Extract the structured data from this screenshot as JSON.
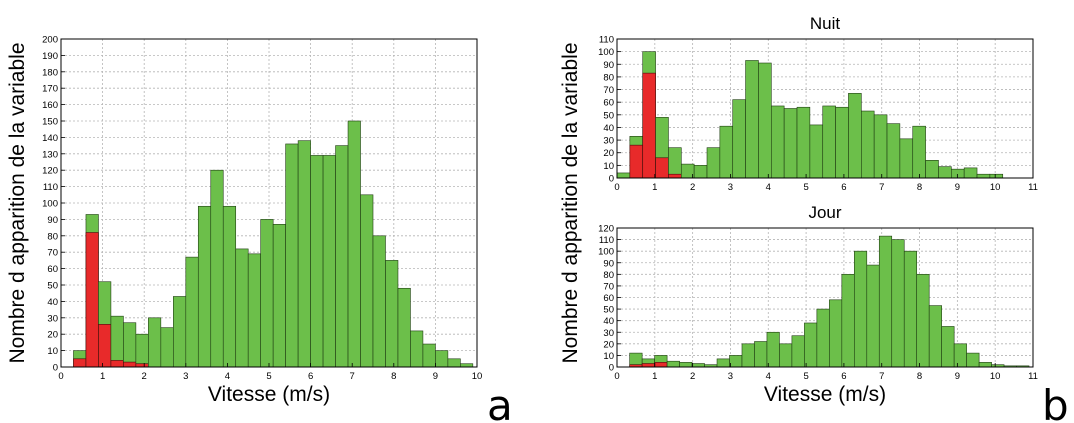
{
  "colors": {
    "green": "#6cbf4a",
    "red": "#e82a2a",
    "grid": "#b5b5b5"
  },
  "panel_labels": {
    "a": "a",
    "b": "b"
  },
  "chart_data": [
    {
      "id": "a",
      "type": "bar",
      "stacked_overlay": true,
      "title": "",
      "xlabel": "Vitesse (m/s)",
      "ylabel": "Nombre d apparition de la variable",
      "xlim": [
        0,
        10
      ],
      "ylim": [
        0,
        200
      ],
      "xticks": [
        0,
        1,
        2,
        3,
        4,
        5,
        6,
        7,
        8,
        9,
        10
      ],
      "yticks": [
        0,
        10,
        20,
        30,
        40,
        50,
        60,
        70,
        80,
        90,
        100,
        110,
        120,
        130,
        140,
        150,
        160,
        170,
        180,
        190,
        200
      ],
      "grid": true,
      "bin_width": 0.3,
      "x": [
        0.45,
        0.75,
        1.05,
        1.35,
        1.65,
        1.95,
        2.25,
        2.55,
        2.85,
        3.15,
        3.45,
        3.75,
        4.05,
        4.35,
        4.65,
        4.95,
        5.25,
        5.55,
        5.85,
        6.15,
        6.45,
        6.75,
        7.05,
        7.35,
        7.65,
        7.95,
        8.25,
        8.55,
        8.85,
        9.15,
        9.45,
        9.75
      ],
      "series": [
        {
          "values": [
            10,
            93,
            52,
            31,
            27,
            20,
            30,
            24,
            43,
            67,
            98,
            120,
            98,
            72,
            69,
            90,
            87,
            136,
            138,
            129,
            129,
            135,
            150,
            105,
            80,
            65,
            48,
            22,
            14,
            10,
            5,
            2
          ]
        },
        {
          "values": [
            5,
            82,
            26,
            4,
            3,
            2,
            0,
            0,
            0,
            0,
            0,
            0,
            0,
            0,
            0,
            0,
            0,
            0,
            0,
            0,
            0,
            0,
            0,
            0,
            0,
            0,
            0,
            0,
            0,
            0,
            0,
            0
          ]
        }
      ]
    },
    {
      "id": "nuit",
      "type": "bar",
      "stacked_overlay": true,
      "title": "Nuit",
      "xlabel": "",
      "ylabel": "Nombre d apparition de la variable",
      "xlim": [
        0,
        11
      ],
      "ylim": [
        0,
        110
      ],
      "xticks": [
        0,
        1,
        2,
        3,
        4,
        5,
        6,
        7,
        8,
        9,
        10,
        11
      ],
      "yticks": [
        0,
        10,
        20,
        30,
        40,
        50,
        60,
        70,
        80,
        90,
        100,
        110
      ],
      "grid": true,
      "bin_width": 0.34,
      "x": [
        0.17,
        0.51,
        0.85,
        1.19,
        1.53,
        1.87,
        2.21,
        2.55,
        2.89,
        3.23,
        3.57,
        3.91,
        4.25,
        4.59,
        4.93,
        5.27,
        5.61,
        5.95,
        6.29,
        6.63,
        6.97,
        7.31,
        7.65,
        7.99,
        8.33,
        8.67,
        9.01,
        9.35,
        9.69,
        10.03
      ],
      "series": [
        {
          "values": [
            4,
            33,
            100,
            48,
            24,
            11,
            10,
            24,
            41,
            62,
            93,
            91,
            57,
            55,
            56,
            42,
            57,
            56,
            67,
            53,
            50,
            43,
            31,
            41,
            14,
            9,
            7,
            8,
            3,
            3
          ]
        },
        {
          "values": [
            0,
            26,
            83,
            16,
            3,
            0,
            0,
            0,
            0,
            0,
            0,
            0,
            0,
            0,
            0,
            0,
            0,
            0,
            0,
            0,
            0,
            0,
            0,
            0,
            0,
            0,
            0,
            0,
            0,
            0
          ]
        }
      ]
    },
    {
      "id": "jour",
      "type": "bar",
      "stacked_overlay": true,
      "title": "Jour",
      "xlabel": "Vitesse (m/s)",
      "ylabel": "",
      "xlim": [
        0,
        11
      ],
      "ylim": [
        0,
        120
      ],
      "xticks": [
        0,
        1,
        2,
        3,
        4,
        5,
        6,
        7,
        8,
        9,
        10,
        11
      ],
      "yticks": [
        0,
        10,
        20,
        30,
        40,
        50,
        60,
        70,
        80,
        90,
        100,
        110,
        120
      ],
      "grid": true,
      "bin_width": 0.33,
      "x": [
        0.5,
        0.83,
        1.16,
        1.49,
        1.82,
        2.15,
        2.48,
        2.81,
        3.14,
        3.47,
        3.8,
        4.13,
        4.46,
        4.79,
        5.12,
        5.45,
        5.78,
        6.11,
        6.44,
        6.77,
        7.1,
        7.43,
        7.76,
        8.09,
        8.42,
        8.75,
        9.08,
        9.41,
        9.74,
        10.07,
        10.4,
        10.73
      ],
      "series": [
        {
          "values": [
            12,
            7,
            10,
            5,
            4,
            3,
            2,
            7,
            10,
            20,
            22,
            30,
            20,
            27,
            38,
            50,
            58,
            80,
            100,
            88,
            113,
            110,
            100,
            80,
            53,
            35,
            20,
            12,
            4,
            2,
            1,
            1
          ]
        },
        {
          "values": [
            2,
            3,
            4,
            0,
            0,
            0,
            0,
            0,
            0,
            0,
            0,
            0,
            0,
            0,
            0,
            0,
            0,
            0,
            0,
            0,
            0,
            0,
            0,
            0,
            0,
            0,
            0,
            0,
            0,
            0,
            0,
            0
          ]
        }
      ]
    }
  ]
}
